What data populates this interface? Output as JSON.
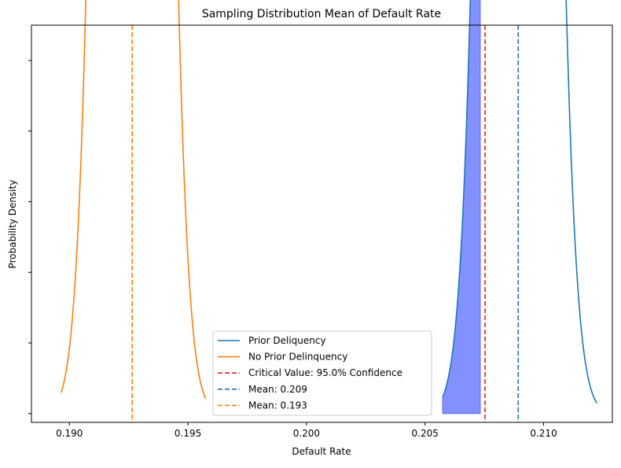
{
  "chart_data": {
    "type": "line",
    "title": "Sampling Distribution Mean of Default Rate",
    "xlabel": "Default Rate",
    "ylabel": "Probability Density",
    "xlim": [
      0.1884,
      0.2129
    ],
    "ylim": [
      -1.0,
      44.0
    ],
    "x_ticks": [
      0.19,
      0.195,
      0.2,
      0.205,
      0.21
    ],
    "x_tick_labels": [
      "0.190",
      "0.195",
      "0.200",
      "0.205",
      "0.210"
    ],
    "y_tick_values": [
      0,
      8,
      16,
      24,
      32,
      40
    ],
    "y_tick_labels_shown": false,
    "grid": false,
    "legend_placement": "lower center",
    "series": [
      {
        "name": "Prior Deliquency",
        "kind": "normal",
        "mean": 0.20893,
        "sd": 0.00097,
        "x_range": [
          0.20574,
          0.21225
        ],
        "color": "#1f77b4"
      },
      {
        "name": "No Prior Delinquency",
        "kind": "normal",
        "mean": 0.19265,
        "sd": 0.00093,
        "x_range": [
          0.18965,
          0.19575
        ],
        "color": "#ff7f0e"
      }
    ],
    "vlines": [
      {
        "name": "Critical Value: 95.0% Confidence",
        "x": 0.20753,
        "color": "#d62728",
        "style": "dashed"
      },
      {
        "name": "Mean:  0.209",
        "x": 0.20893,
        "color": "#1f77b4",
        "style": "dashed"
      },
      {
        "name": "Mean:  0.193",
        "x": 0.19265,
        "color": "#ff7f0e",
        "style": "dashed"
      }
    ],
    "shaded_region": {
      "series": "Prior Deliquency",
      "x_from": 0.20574,
      "x_to": 0.20733,
      "color": "#5a6cff"
    },
    "legend": [
      {
        "label": "Prior Deliquency",
        "color": "#1f77b4",
        "style": "solid"
      },
      {
        "label": "No Prior Delinquency",
        "color": "#ff7f0e",
        "style": "solid"
      },
      {
        "label": "Critical Value: 95.0% Confidence",
        "color": "#d62728",
        "style": "dashed"
      },
      {
        "label": "Mean:  0.209",
        "color": "#1f77b4",
        "style": "dashed"
      },
      {
        "label": "Mean:  0.193",
        "color": "#ff7f0e",
        "style": "dashed"
      }
    ]
  }
}
